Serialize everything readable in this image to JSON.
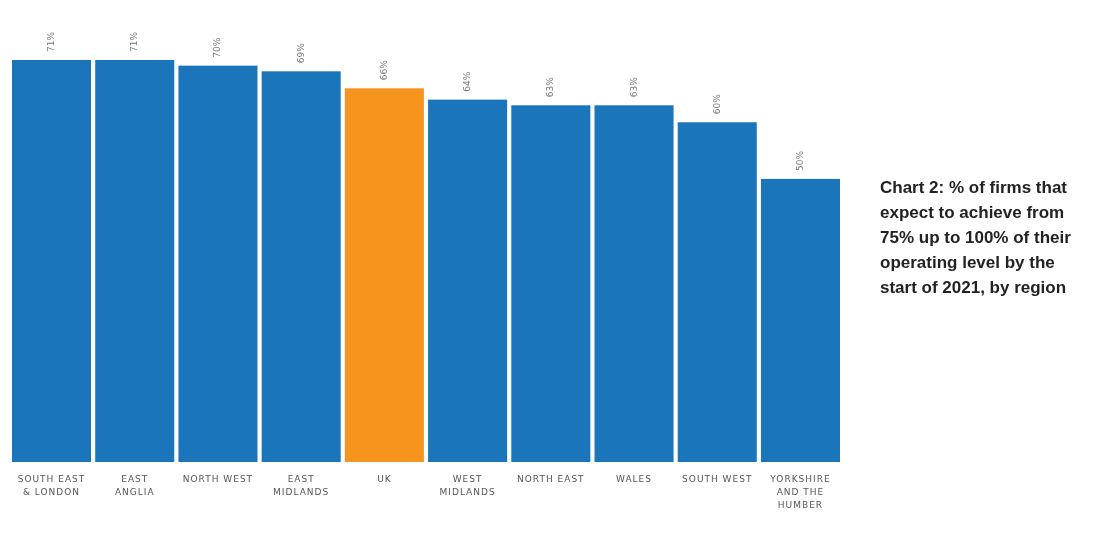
{
  "chart_data": {
    "type": "bar",
    "title": "Chart 2: % of firms that expect to achieve from 75% up to 100% of their operating level by the start of 2021, by region",
    "categories": [
      "SOUTH EAST & LONDON",
      "EAST ANGLIA",
      "NORTH WEST",
      "EAST MIDLANDS",
      "UK",
      "WEST MIDLANDS",
      "NORTH EAST",
      "WALES",
      "SOUTH WEST",
      "YORKSHIRE AND THE HUMBER"
    ],
    "values": [
      71,
      71,
      70,
      69,
      66,
      64,
      63,
      63,
      60,
      50
    ],
    "value_labels": [
      "71%",
      "71%",
      "70%",
      "69%",
      "66%",
      "64%",
      "63%",
      "63%",
      "60%",
      "50%"
    ],
    "colors": [
      "#1a75bb",
      "#1a75bb",
      "#1a75bb",
      "#1a75bb",
      "#f7941d",
      "#1a75bb",
      "#1a75bb",
      "#1a75bb",
      "#1a75bb",
      "#1a75bb"
    ]
  }
}
